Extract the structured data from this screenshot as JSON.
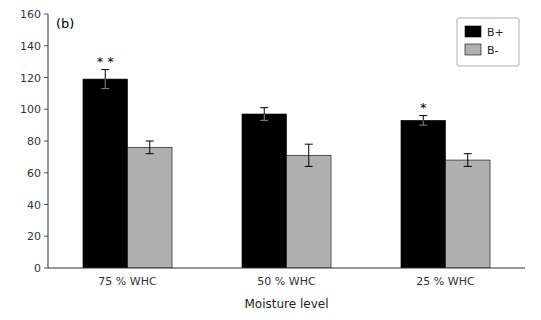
{
  "chart_data": {
    "type": "bar",
    "categories": [
      "75 % WHC",
      "50 % WHC",
      "25 % WHC"
    ],
    "series": [
      {
        "name": "B+",
        "color": "#000000",
        "values": [
          119,
          97,
          93
        ],
        "errors": [
          6,
          4,
          3
        ],
        "significance": [
          "* *",
          null,
          "*"
        ]
      },
      {
        "name": "B-",
        "color": "#b0b0b0",
        "values": [
          76,
          71,
          68
        ],
        "errors": [
          4,
          7,
          4
        ]
      }
    ],
    "panel_label": "(b)",
    "xlabel": "Moisture level",
    "ylim": [
      0,
      160
    ],
    "yticks": [
      0,
      20,
      40,
      60,
      80,
      100,
      120,
      140,
      160
    ],
    "legend": "upper right"
  }
}
